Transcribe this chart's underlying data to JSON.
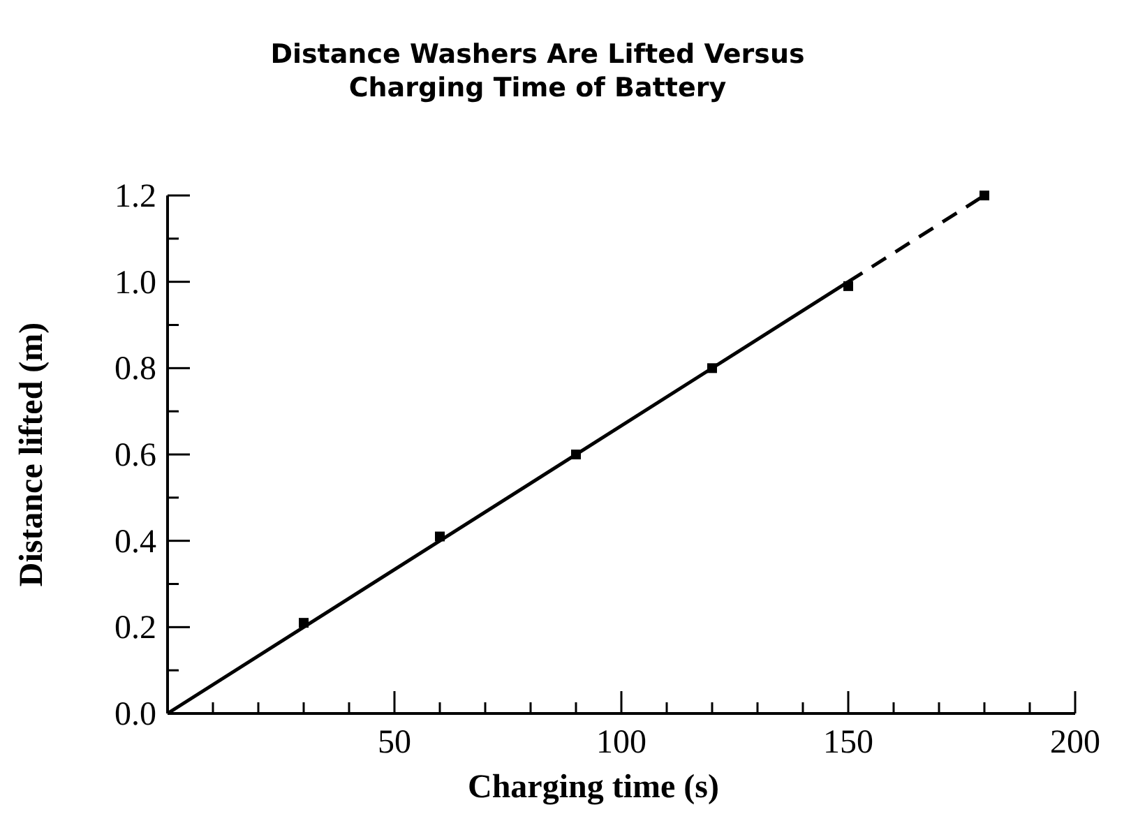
{
  "chart_data": {
    "type": "scatter",
    "title": "Distance Washers Are Lifted Versus\nCharging Time of Battery",
    "xlabel": "Charging time (s)",
    "ylabel": "Distance lifted (m)",
    "xlim": [
      0,
      200
    ],
    "ylim": [
      0,
      1.2
    ],
    "xticks": [
      {
        "value": 0,
        "label": null
      },
      {
        "value": 10,
        "label": null
      },
      {
        "value": 20,
        "label": null
      },
      {
        "value": 30,
        "label": null
      },
      {
        "value": 40,
        "label": null
      },
      50,
      {
        "value": 60,
        "label": null
      },
      {
        "value": 70,
        "label": null
      },
      {
        "value": 80,
        "label": null
      },
      {
        "value": 90,
        "label": null
      },
      100,
      {
        "value": 110,
        "label": null
      },
      {
        "value": 120,
        "label": null
      },
      {
        "value": 130,
        "label": null
      },
      {
        "value": 140,
        "label": null
      },
      150,
      {
        "value": 160,
        "label": null
      },
      {
        "value": 170,
        "label": null
      },
      {
        "value": 180,
        "label": null
      },
      {
        "value": 190,
        "label": null
      },
      200
    ],
    "yticks": [
      {
        "value": 0,
        "label": "0.0"
      },
      {
        "value": 0.1,
        "label": null
      },
      0.2,
      {
        "value": 0.3,
        "label": null
      },
      0.4,
      {
        "value": 0.5,
        "label": null
      },
      0.6,
      {
        "value": 0.7,
        "label": null
      },
      0.8,
      {
        "value": 0.9,
        "label": null
      },
      {
        "value": 1,
        "label": "1.0"
      },
      {
        "value": 1.1,
        "label": null
      },
      1.2
    ],
    "grid": false,
    "series": [
      {
        "marker": "square",
        "color": "#000000",
        "x": [
          30,
          60,
          90,
          120,
          150,
          180
        ],
        "values": [
          0.21,
          0.41,
          0.6,
          0.8,
          0.99,
          1.2
        ]
      },
      {
        "type": "line",
        "line_style": "solid",
        "color": "#000000",
        "x": [
          0,
          150
        ],
        "values": [
          0,
          1.0
        ]
      },
      {
        "type": "line",
        "line_style": "dashed",
        "color": "#000000",
        "x": [
          150,
          180
        ],
        "values": [
          1.0,
          1.2
        ]
      }
    ]
  }
}
